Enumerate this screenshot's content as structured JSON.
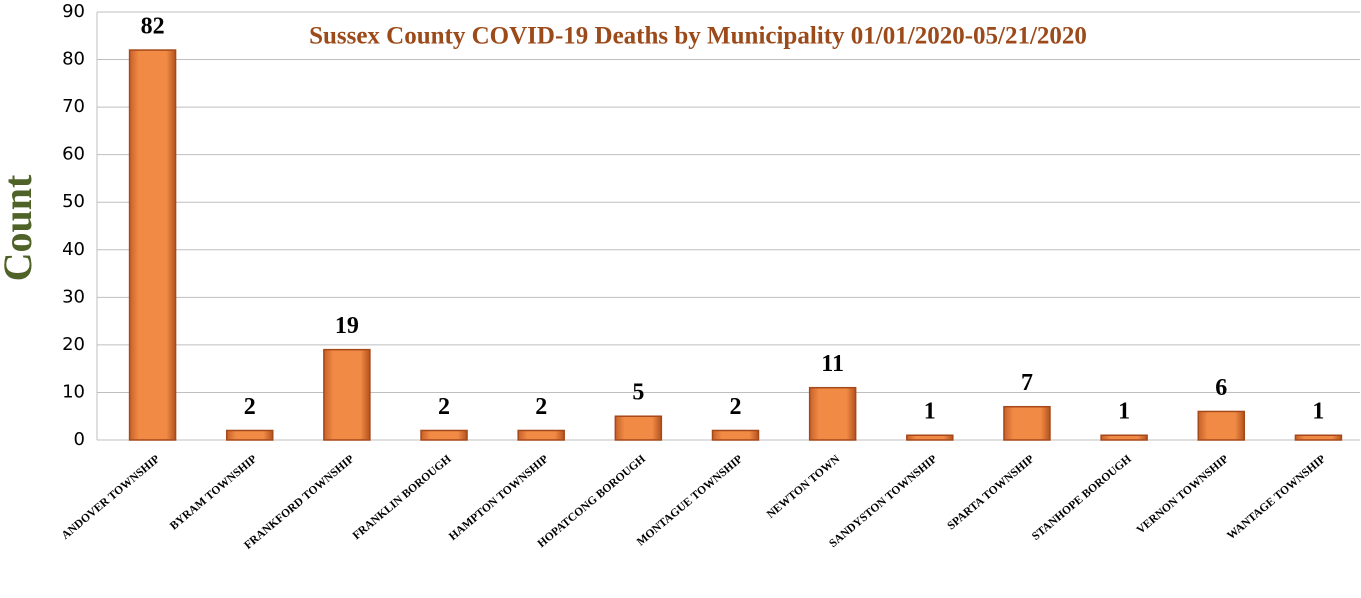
{
  "chart_data": {
    "type": "bar",
    "title": "Sussex County COVID-19 Deaths by Municipality 01/01/2020-05/21/2020",
    "y_label": "Count",
    "categories": [
      "ANDOVER TOWNSHIP",
      "BYRAM TOWNSHIP",
      "FRANKFORD TOWNSHIP",
      "FRANKLIN BOROUGH",
      "HAMPTON TOWNSHIP",
      "HOPATCONG BOROUGH",
      "MONTAGUE TOWNSHIP",
      "NEWTON TOWN",
      "SANDYSTON TOWNSHIP",
      "SPARTA TOWNSHIP",
      "STANHOPE BOROUGH",
      "VERNON TOWNSHIP",
      "WANTAGE TOWNSHIP"
    ],
    "values": [
      82,
      2,
      19,
      2,
      2,
      5,
      2,
      11,
      1,
      7,
      1,
      6,
      1
    ],
    "color": "#e8803a",
    "ylim": [
      0,
      90
    ],
    "yticks": [
      0,
      10,
      20,
      30,
      40,
      50,
      60,
      70,
      80,
      90
    ],
    "grid": true
  }
}
